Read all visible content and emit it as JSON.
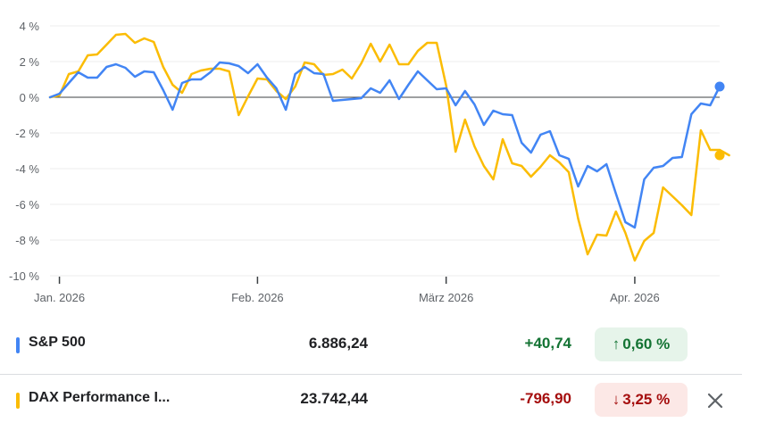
{
  "chart_data": {
    "type": "line",
    "ylabel": "",
    "xlabel": "",
    "ylim": [
      -10,
      4
    ],
    "yticks": [
      4,
      2,
      0,
      -2,
      -4,
      -6,
      -8,
      -10
    ],
    "ytick_labels": [
      "4 %",
      "2 %",
      "0 %",
      "-2 %",
      "-4 %",
      "-6 %",
      "-8 %",
      "-10 %"
    ],
    "xtick_labels": [
      "Jan. 2026",
      "Feb. 2026",
      "März 2026",
      "Apr. 2026"
    ],
    "xtick_index": [
      1,
      22,
      42,
      62
    ],
    "grid": "horizontal",
    "series": [
      {
        "name": "S&P 500",
        "color": "#4285f4",
        "values": [
          0,
          0.2,
          0.8,
          1.4,
          1.1,
          1.1,
          1.7,
          1.85,
          1.65,
          1.15,
          1.45,
          1.4,
          0.4,
          -0.7,
          0.8,
          1.0,
          1.0,
          1.4,
          1.95,
          1.9,
          1.75,
          1.35,
          1.85,
          1.1,
          0.5,
          -0.7,
          1.3,
          1.7,
          1.35,
          1.3,
          -0.2,
          -0.15,
          -0.1,
          -0.05,
          0.5,
          0.25,
          0.95,
          -0.1,
          0.7,
          1.45,
          0.95,
          0.45,
          0.5,
          -0.45,
          0.35,
          -0.4,
          -1.55,
          -0.75,
          -0.95,
          -1.0,
          -2.55,
          -3.1,
          -2.1,
          -1.9,
          -3.25,
          -3.45,
          -5.0,
          -3.85,
          -4.15,
          -3.75,
          -5.4,
          -7.0,
          -7.3,
          -4.6,
          -3.95,
          -3.85,
          -3.4,
          -3.35,
          -0.95,
          -0.35,
          -0.45,
          0.6
        ]
      },
      {
        "name": "DAX Performance I...",
        "color": "#fbbc04",
        "values": [
          0,
          0.1,
          1.3,
          1.45,
          2.35,
          2.4,
          2.95,
          3.5,
          3.55,
          3.05,
          3.3,
          3.1,
          1.7,
          0.7,
          0.25,
          1.3,
          1.5,
          1.6,
          1.6,
          1.45,
          -1.0,
          0.05,
          1.05,
          1.0,
          0.35,
          -0.1,
          0.6,
          1.95,
          1.85,
          1.25,
          1.3,
          1.55,
          1.05,
          1.9,
          3.0,
          2.0,
          2.95,
          1.85,
          1.85,
          2.6,
          3.05,
          3.05,
          0.65,
          -3.05,
          -1.25,
          -2.75,
          -3.85,
          -4.6,
          -2.35,
          -3.7,
          -3.85,
          -4.45,
          -3.9,
          -3.25,
          -3.65,
          -4.2,
          -6.8,
          -8.8,
          -7.7,
          -7.75,
          -6.4,
          -7.6,
          -9.15,
          -8.05,
          -7.6,
          -5.05,
          -5.55,
          -6.05,
          -6.6,
          -1.85,
          -2.95,
          -2.95,
          -3.25
        ]
      }
    ]
  },
  "legend": {
    "rows": [
      {
        "name": "S&P 500",
        "color": "#4285f4",
        "price": "6.886,24",
        "change": "+40,74",
        "change_color": "#137333",
        "arrow": "↑",
        "percent": "0,60 %",
        "direction": "up"
      },
      {
        "name": "DAX Performance I...",
        "color": "#fbbc04",
        "price": "23.742,44",
        "change": "-796,90",
        "change_color": "#a50e0e",
        "arrow": "↓",
        "percent": "3,25 %",
        "direction": "down",
        "close_icon": "close-icon"
      }
    ]
  }
}
